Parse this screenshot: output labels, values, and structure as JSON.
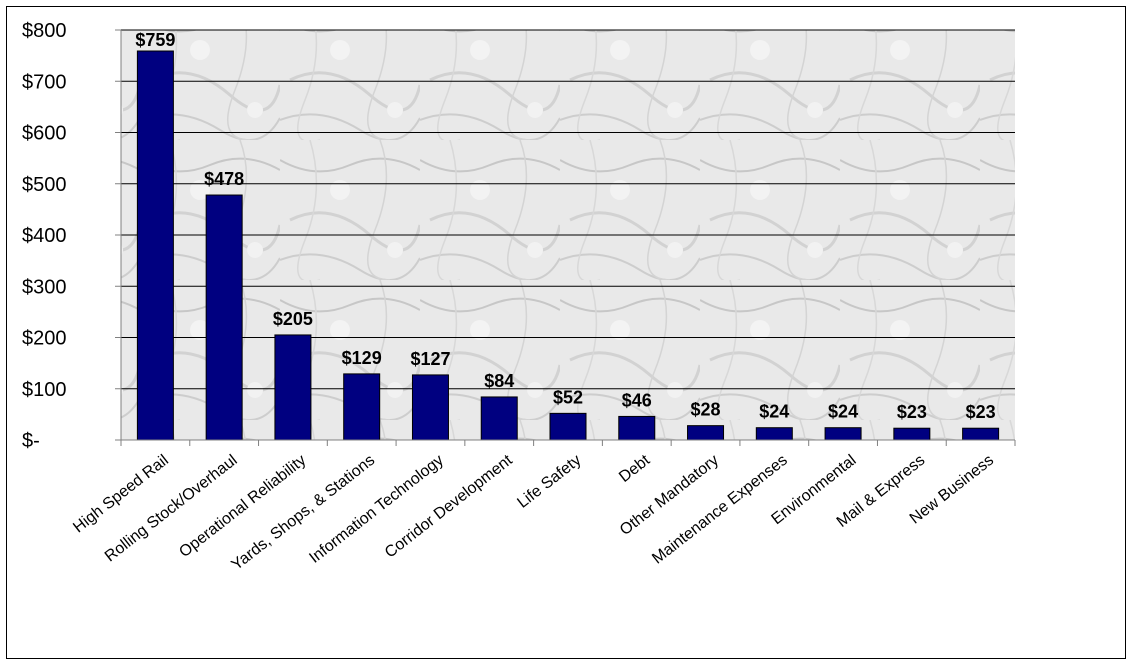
{
  "chart_data": {
    "type": "bar",
    "categories": [
      "High Speed Rail",
      "Rolling Stock/Overhaul",
      "Operational Reliability",
      "Yards, Shops, & Stations",
      "Information Technology",
      "Corridor Development",
      "Life Safety",
      "Debt",
      "Other Mandatory",
      "Maintenance Expenses",
      "Environmental",
      "Mail & Express",
      "New Business"
    ],
    "values": [
      759,
      478,
      205,
      129,
      127,
      84,
      52,
      46,
      28,
      24,
      24,
      23,
      23
    ],
    "data_labels": [
      "$759",
      "$478",
      "$205",
      "$129",
      "$127",
      "$84",
      "$52",
      "$46",
      "$28",
      "$24",
      "$24",
      "$23",
      "$23"
    ],
    "yticks": [
      0,
      100,
      200,
      300,
      400,
      500,
      600,
      700,
      800
    ],
    "ytick_labels": [
      "$-",
      "$100",
      "$200",
      "$300",
      "$400",
      "$500",
      "$600",
      "$700",
      "$800"
    ],
    "ylim": [
      0,
      800
    ],
    "grid": true,
    "bar_color": "#000080",
    "title": "",
    "xlabel": "",
    "ylabel": ""
  }
}
